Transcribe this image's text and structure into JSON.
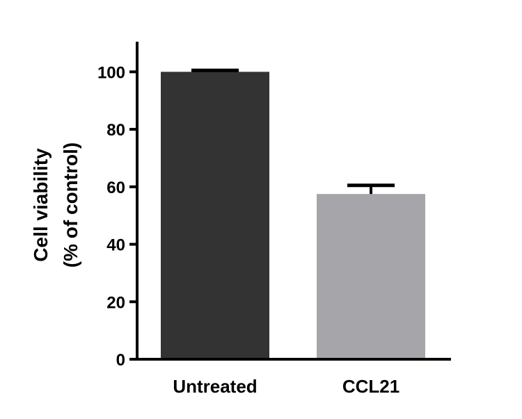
{
  "chart_data": {
    "type": "bar",
    "title": "",
    "xlabel": "",
    "ylabel_lines": [
      "Cell viability",
      "(% of control)"
    ],
    "categories": [
      "Untreated",
      "CCL21"
    ],
    "values": [
      100,
      57.5
    ],
    "errors": [
      0.5,
      3
    ],
    "bar_colors": [
      "#333333",
      "#a6a6aa"
    ],
    "ylim": [
      0,
      110
    ],
    "yticks": [
      0,
      20,
      40,
      60,
      80,
      100
    ],
    "ytick_labels": [
      "0",
      "20",
      "40",
      "60",
      "80",
      "100"
    ],
    "grid": false,
    "legend": "none"
  }
}
